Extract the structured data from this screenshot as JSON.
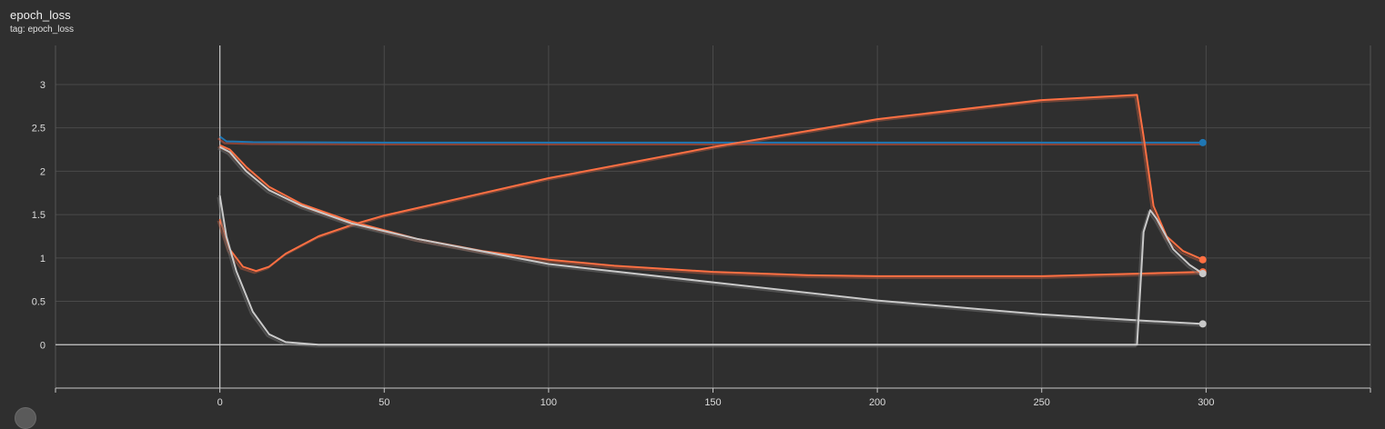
{
  "card": {
    "title": "epoch_loss",
    "subtitle": "tag: epoch_loss"
  },
  "colors": {
    "background": "#2f2f2f",
    "grid": "#4a4a4a",
    "axis": "#c8c8c8",
    "tick_text": "#dcdcdc"
  },
  "chart_data": {
    "type": "line",
    "title": "epoch_loss",
    "subtitle": "tag: epoch_loss",
    "xlabel": "",
    "ylabel": "",
    "xlim": [
      -50,
      350
    ],
    "ylim": [
      -0.5,
      3.45
    ],
    "x_ticks": [
      0,
      50,
      100,
      150,
      200,
      250,
      300
    ],
    "y_ticks": [
      0,
      0.5,
      1,
      1.5,
      2,
      2.5,
      3
    ],
    "grid": true,
    "legend": "none",
    "series": [
      {
        "color": "#1f77b4",
        "raw_color": "#d2543a",
        "points": [
          [
            0,
            2.4
          ],
          [
            2,
            2.345
          ],
          [
            10,
            2.335
          ],
          [
            50,
            2.33
          ],
          [
            100,
            2.33
          ],
          [
            150,
            2.33
          ],
          [
            200,
            2.33
          ],
          [
            250,
            2.33
          ],
          [
            299,
            2.33
          ]
        ]
      },
      {
        "color": "#ff7043",
        "raw_color": "#a8553e",
        "points": [
          [
            0,
            2.3
          ],
          [
            3,
            2.25
          ],
          [
            8,
            2.05
          ],
          [
            15,
            1.82
          ],
          [
            25,
            1.62
          ],
          [
            40,
            1.42
          ],
          [
            60,
            1.22
          ],
          [
            80,
            1.08
          ],
          [
            100,
            0.98
          ],
          [
            120,
            0.91
          ],
          [
            150,
            0.84
          ],
          [
            180,
            0.8
          ],
          [
            200,
            0.79
          ],
          [
            250,
            0.79
          ],
          [
            280,
            0.82
          ],
          [
            299,
            0.84
          ]
        ]
      },
      {
        "color": "#ff7043",
        "raw_color": "#a8553e",
        "points": [
          [
            0,
            1.45
          ],
          [
            3,
            1.1
          ],
          [
            7,
            0.9
          ],
          [
            11,
            0.85
          ],
          [
            15,
            0.9
          ],
          [
            20,
            1.05
          ],
          [
            30,
            1.25
          ],
          [
            40,
            1.38
          ],
          [
            50,
            1.49
          ],
          [
            100,
            1.92
          ],
          [
            150,
            2.28
          ],
          [
            200,
            2.6
          ],
          [
            250,
            2.82
          ],
          [
            279,
            2.88
          ],
          [
            281,
            2.4
          ],
          [
            284,
            1.6
          ],
          [
            288,
            1.25
          ],
          [
            293,
            1.08
          ],
          [
            299,
            0.98
          ]
        ]
      },
      {
        "color": "#c9c9c9",
        "raw_color": "#6a6a6a",
        "points": [
          [
            0,
            2.28
          ],
          [
            3,
            2.22
          ],
          [
            8,
            2.0
          ],
          [
            15,
            1.78
          ],
          [
            25,
            1.6
          ],
          [
            40,
            1.4
          ],
          [
            60,
            1.22
          ],
          [
            100,
            0.93
          ],
          [
            150,
            0.72
          ],
          [
            200,
            0.51
          ],
          [
            250,
            0.35
          ],
          [
            280,
            0.28
          ],
          [
            299,
            0.24
          ]
        ]
      },
      {
        "color": "#c9c9c9",
        "raw_color": "#6a6a6a",
        "points": [
          [
            0,
            1.72
          ],
          [
            2,
            1.25
          ],
          [
            5,
            0.85
          ],
          [
            10,
            0.38
          ],
          [
            15,
            0.12
          ],
          [
            20,
            0.03
          ],
          [
            30,
            0.0
          ],
          [
            100,
            0.0
          ],
          [
            200,
            0.0
          ],
          [
            278,
            0.0
          ],
          [
            279,
            0.0
          ],
          [
            281,
            1.3
          ],
          [
            283,
            1.55
          ],
          [
            285,
            1.45
          ],
          [
            290,
            1.1
          ],
          [
            295,
            0.92
          ],
          [
            299,
            0.82
          ]
        ]
      }
    ]
  }
}
